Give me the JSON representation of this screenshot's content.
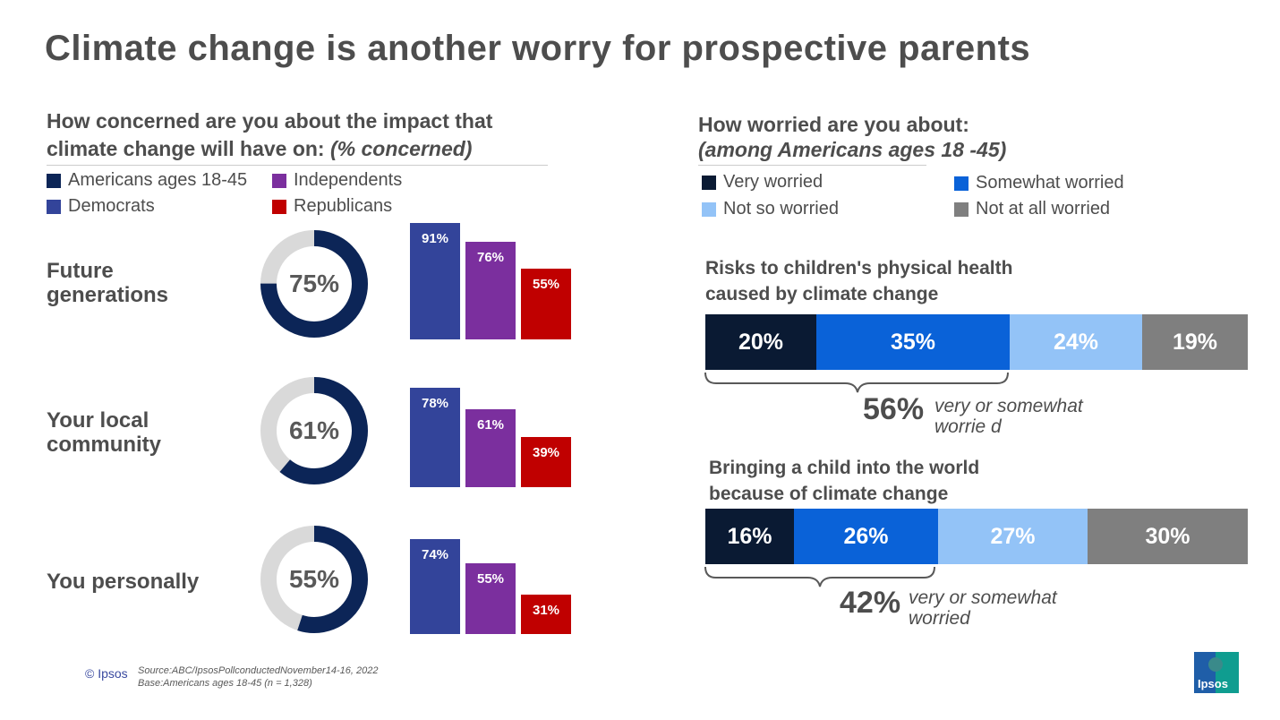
{
  "title": "Climate change is another worry for prospective parents",
  "left": {
    "question_line1": "How concerned are you about the impact that",
    "question_line2": "climate change will have on:",
    "question_suffix": "(% concerned)",
    "legend": [
      {
        "label": "Americans ages 18-45",
        "color": "#0c2557"
      },
      {
        "label": "Independents",
        "color": "#7b2f9e"
      },
      {
        "label": "Democrats",
        "color": "#33449a"
      },
      {
        "label": "Republicans",
        "color": "#c00000"
      }
    ]
  },
  "right": {
    "question_line1": "How worried are you about:",
    "question_line2": "(among Americans ages 18 -45)",
    "legend": [
      {
        "label": "Very worried",
        "color": "#0a1a33"
      },
      {
        "label": "Somewhat worried",
        "color": "#0a62d8"
      },
      {
        "label": "Not so worried",
        "color": "#93c3f7"
      },
      {
        "label": "Not at all worried",
        "color": "#7f7f7f"
      }
    ],
    "bars": [
      {
        "title_line1": "Risks to children's physical health",
        "title_line2": "caused by climate change",
        "segments": [
          "20%",
          "35%",
          "24%",
          "19%"
        ],
        "brace_value": "56%",
        "brace_line1": "very or  somewhat",
        "brace_line2": "worrie d"
      },
      {
        "title_line1": "Bringing a child into the world",
        "title_line2": "because of climate change",
        "segments": [
          "16%",
          "26%",
          "27%",
          "30%"
        ],
        "brace_value": "42%",
        "brace_line1": "very or somewhat",
        "brace_line2": "worried"
      }
    ]
  },
  "chart_data": [
    {
      "type": "donut+bar",
      "title": "How concerned are you about the impact that climate change will have on: (% concerned)",
      "categories": [
        "Future generations",
        "Your local community",
        "You personally"
      ],
      "donut_labels": [
        "75%",
        "61%",
        "55%"
      ],
      "series": [
        {
          "name": "Americans ages 18-45",
          "values": [
            75,
            61,
            55
          ]
        },
        {
          "name": "Democrats",
          "values": [
            91,
            78,
            74
          ],
          "labels": [
            "91%",
            "78%",
            "74%"
          ]
        },
        {
          "name": "Independents",
          "values": [
            76,
            61,
            55
          ],
          "labels": [
            "76%",
            "61%",
            "55%"
          ]
        },
        {
          "name": "Republicans",
          "values": [
            55,
            39,
            31
          ],
          "labels": [
            "55%",
            "39%",
            "31%"
          ]
        }
      ],
      "ylim": [
        0,
        100
      ]
    },
    {
      "type": "bar",
      "orientation": "horizontal-stacked",
      "title": "How worried are you about: (among Americans ages 18 -45)",
      "categories": [
        "Risks to children's physical health caused by climate change",
        "Bringing a child into the world because of climate change"
      ],
      "series": [
        {
          "name": "Very worried",
          "values": [
            20,
            16
          ]
        },
        {
          "name": "Somewhat worried",
          "values": [
            35,
            26
          ]
        },
        {
          "name": "Not so worried",
          "values": [
            24,
            27
          ]
        },
        {
          "name": "Not at all worried",
          "values": [
            19,
            30
          ]
        }
      ],
      "xlim": [
        0,
        98
      ]
    }
  ],
  "footer": {
    "copyright": "© Ipsos",
    "source_line1": "Source:ABC/IpsosPollconductedNovember14-16, 2022",
    "source_line2": "Base:Americans ages 18-45 (n = 1,328)",
    "logo_text": "Ipsos"
  }
}
